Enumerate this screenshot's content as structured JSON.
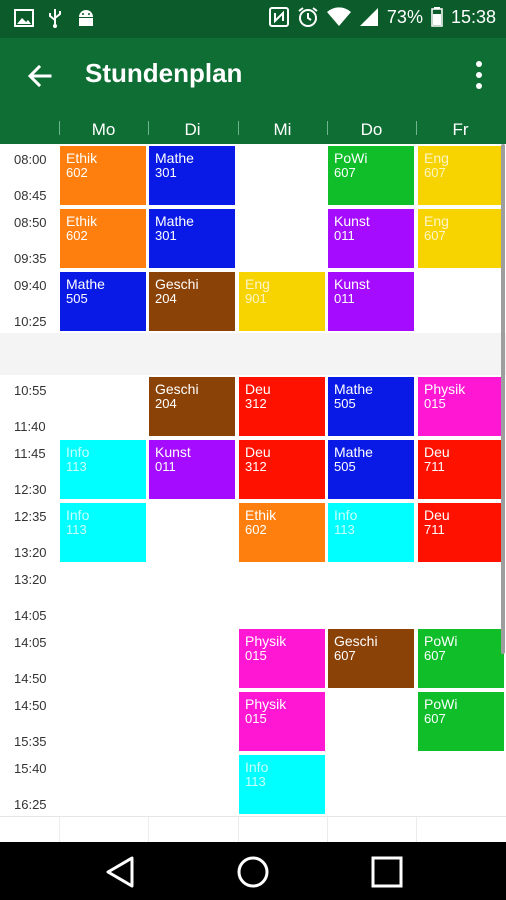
{
  "status_bar": {
    "battery": "73%",
    "time": "15:38",
    "icons": [
      "image-icon",
      "usb-icon",
      "android-icon",
      "nfc-icon",
      "alarm-icon",
      "wifi-icon",
      "signal-icon",
      "battery-icon"
    ]
  },
  "app_bar": {
    "title": "Stundenplan",
    "icons": [
      "back-arrow-icon",
      "more-vert-icon"
    ]
  },
  "days": [
    "Mo",
    "Di",
    "Mi",
    "Do",
    "Fr"
  ],
  "colors": {
    "Ethik": "#ff7f0e",
    "Mathe": "#0a1ae6",
    "PoWi": "#0fbe29",
    "Eng": "#f7d300",
    "Kunst": "#a40bff",
    "Geschi": "#8b4207",
    "Deu": "#ff1100",
    "Physik": "#ff17d4",
    "Info": "#00ffff"
  },
  "periods": [
    {
      "start": "08:00",
      "end": "08:45",
      "cells": [
        {
          "subject": "Ethik",
          "room": "602"
        },
        {
          "subject": "Mathe",
          "room": "301"
        },
        null,
        {
          "subject": "PoWi",
          "room": "607"
        },
        {
          "subject": "Eng",
          "room": "607"
        }
      ]
    },
    {
      "start": "08:50",
      "end": "09:35",
      "cells": [
        {
          "subject": "Ethik",
          "room": "602"
        },
        {
          "subject": "Mathe",
          "room": "301"
        },
        null,
        {
          "subject": "Kunst",
          "room": "011"
        },
        {
          "subject": "Eng",
          "room": "607"
        }
      ]
    },
    {
      "start": "09:40",
      "end": "10:25",
      "cells": [
        {
          "subject": "Mathe",
          "room": "505"
        },
        {
          "subject": "Geschi",
          "room": "204"
        },
        {
          "subject": "Eng",
          "room": "901"
        },
        {
          "subject": "Kunst",
          "room": "011"
        },
        null
      ]
    },
    {
      "break": true
    },
    {
      "start": "10:55",
      "end": "11:40",
      "cells": [
        null,
        {
          "subject": "Geschi",
          "room": "204"
        },
        {
          "subject": "Deu",
          "room": "312"
        },
        {
          "subject": "Mathe",
          "room": "505"
        },
        {
          "subject": "Physik",
          "room": "015"
        }
      ]
    },
    {
      "start": "11:45",
      "end": "12:30",
      "cells": [
        {
          "subject": "Info",
          "room": "113"
        },
        {
          "subject": "Kunst",
          "room": "011"
        },
        {
          "subject": "Deu",
          "room": "312"
        },
        {
          "subject": "Mathe",
          "room": "505"
        },
        {
          "subject": "Deu",
          "room": "711"
        }
      ]
    },
    {
      "start": "12:35",
      "end": "13:20",
      "cells": [
        {
          "subject": "Info",
          "room": "113"
        },
        null,
        {
          "subject": "Ethik",
          "room": "602"
        },
        {
          "subject": "Info",
          "room": "113"
        },
        {
          "subject": "Deu",
          "room": "711"
        }
      ]
    },
    {
      "start": "13:20",
      "end": "14:05",
      "cells": [
        null,
        null,
        null,
        null,
        null
      ]
    },
    {
      "start": "14:05",
      "end": "14:50",
      "cells": [
        null,
        null,
        {
          "subject": "Physik",
          "room": "015"
        },
        {
          "subject": "Geschi",
          "room": "607"
        },
        {
          "subject": "PoWi",
          "room": "607"
        }
      ]
    },
    {
      "start": "14:50",
      "end": "15:35",
      "cells": [
        null,
        null,
        {
          "subject": "Physik",
          "room": "015"
        },
        null,
        {
          "subject": "PoWi",
          "room": "607"
        }
      ]
    },
    {
      "start": "15:40",
      "end": "16:25",
      "cells": [
        null,
        null,
        {
          "subject": "Info",
          "room": "113"
        },
        null,
        null
      ]
    }
  ]
}
